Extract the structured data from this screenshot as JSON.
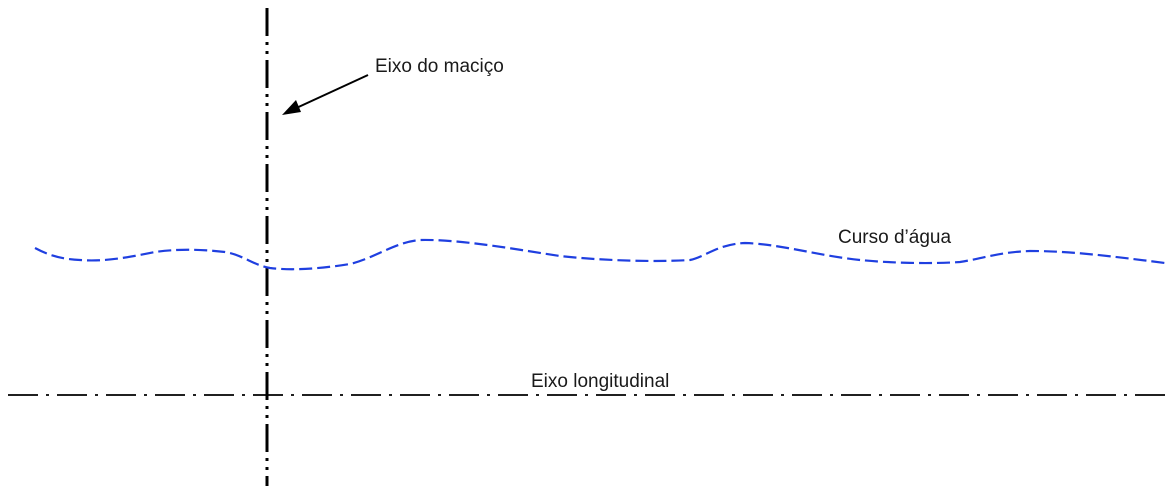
{
  "labels": {
    "dam_axis": "Eixo do maciço",
    "watercourse": "Curso d’água",
    "longitudinal_axis": "Eixo longitudinal"
  },
  "colors": {
    "axis_line": "#000000",
    "watercourse_line": "#1f3fe0",
    "text": "#1a1a1a"
  }
}
